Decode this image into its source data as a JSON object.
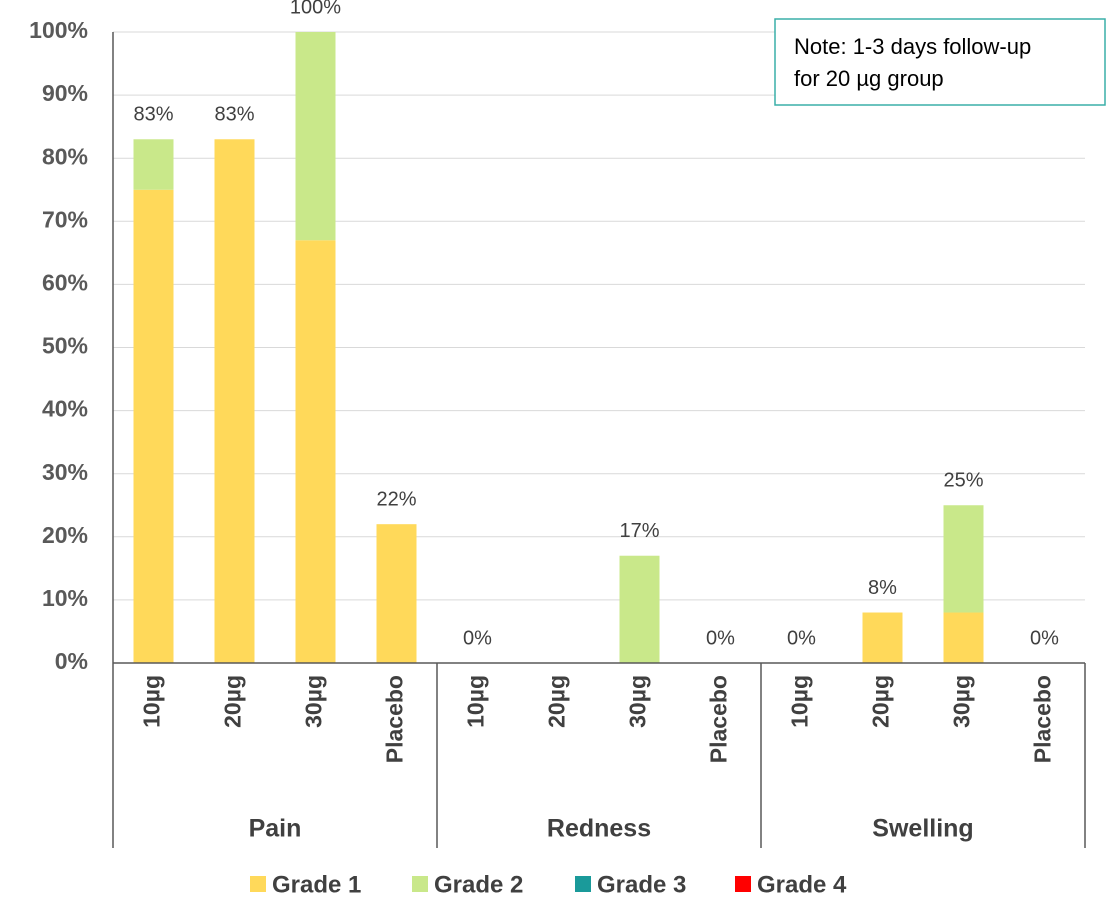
{
  "chart_data": {
    "type": "stacked-bar",
    "groups": [
      "Pain",
      "Redness",
      "Swelling"
    ],
    "categories": [
      "10µg",
      "20µg",
      "30µg",
      "Placebo",
      "10µg",
      "20µg",
      "30µg",
      "Placebo",
      "10µg",
      "20µg",
      "30µg",
      "Placebo"
    ],
    "series": [
      {
        "name": "Grade 1",
        "color": "#FFD95A",
        "values": [
          75,
          83,
          67,
          22,
          0,
          0,
          0,
          0,
          0,
          8,
          8,
          0
        ]
      },
      {
        "name": "Grade 2",
        "color": "#C9E88A",
        "values": [
          8,
          0,
          33,
          0,
          0,
          0,
          17,
          0,
          0,
          0,
          17,
          0
        ]
      },
      {
        "name": "Grade 3",
        "color": "#1A9A9A",
        "values": [
          0,
          0,
          0,
          0,
          0,
          0,
          0,
          0,
          0,
          0,
          0,
          0
        ]
      },
      {
        "name": "Grade 4",
        "color": "#FF0000",
        "values": [
          0,
          0,
          0,
          0,
          0,
          0,
          0,
          0,
          0,
          0,
          0,
          0
        ]
      }
    ],
    "value_labels": [
      "83%",
      "83%",
      "100%",
      "22%",
      "0%",
      null,
      "17%",
      "0%",
      "0%",
      "8%",
      "25%",
      "0%"
    ],
    "ylim": [
      0,
      100
    ],
    "yticks": [
      {
        "value": 0,
        "label": "0%"
      },
      {
        "value": 10,
        "label": "10%"
      },
      {
        "value": 20,
        "label": "20%"
      },
      {
        "value": 30,
        "label": "30%"
      },
      {
        "value": 40,
        "label": "40%"
      },
      {
        "value": 50,
        "label": "50%"
      },
      {
        "value": 60,
        "label": "60%"
      },
      {
        "value": 70,
        "label": "70%"
      },
      {
        "value": 80,
        "label": "80%"
      },
      {
        "value": 90,
        "label": "90%"
      },
      {
        "value": 100,
        "label": "100%"
      }
    ],
    "grid": true,
    "legend": "bottom",
    "annotation": [
      "Note: 1-3 days follow-up",
      "for 20 µg group"
    ]
  }
}
